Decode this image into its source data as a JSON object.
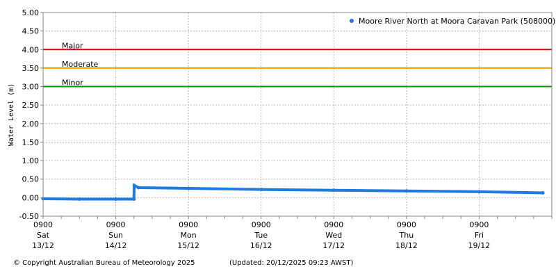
{
  "chart_data": {
    "type": "line",
    "ylabel": "Water Level (m)",
    "ylim": [
      -0.5,
      5.0
    ],
    "yticks": [
      "5.00",
      "4.50",
      "4.00",
      "3.50",
      "3.00",
      "2.50",
      "2.00",
      "1.50",
      "1.00",
      "0.50",
      "0.00",
      "-0.50"
    ],
    "xlim": [
      "2025-12-13T09:00",
      "2025-12-20T09:00"
    ],
    "xticks": [
      {
        "time": "2025-12-13T09:00",
        "l1": "0900",
        "l2": "Sat",
        "l3": "13/12"
      },
      {
        "time": "2025-12-14T09:00",
        "l1": "0900",
        "l2": "Sun",
        "l3": "14/12"
      },
      {
        "time": "2025-12-15T09:00",
        "l1": "0900",
        "l2": "Mon",
        "l3": "15/12"
      },
      {
        "time": "2025-12-16T09:00",
        "l1": "0900",
        "l2": "Tue",
        "l3": "16/12"
      },
      {
        "time": "2025-12-17T09:00",
        "l1": "0900",
        "l2": "Wed",
        "l3": "17/12"
      },
      {
        "time": "2025-12-18T09:00",
        "l1": "0900",
        "l2": "Thu",
        "l3": "18/12"
      },
      {
        "time": "2025-12-19T09:00",
        "l1": "0900",
        "l2": "Fri",
        "l3": "19/12"
      }
    ],
    "grid": true,
    "legend_position": "top-right",
    "series": [
      {
        "name": "Moore River North at Moora Caravan Park (508000)",
        "color": "#1e7be0",
        "points": [
          [
            "2025-12-13T09:00",
            -0.03
          ],
          [
            "2025-12-13T21:00",
            -0.04
          ],
          [
            "2025-12-14T09:00",
            -0.04
          ],
          [
            "2025-12-14T15:00",
            -0.04
          ],
          [
            "2025-12-14T15:05",
            0.33
          ],
          [
            "2025-12-14T16:30",
            0.27
          ],
          [
            "2025-12-15T09:00",
            0.25
          ],
          [
            "2025-12-16T09:00",
            0.22
          ],
          [
            "2025-12-17T09:00",
            0.2
          ],
          [
            "2025-12-18T09:00",
            0.18
          ],
          [
            "2025-12-19T09:00",
            0.16
          ],
          [
            "2025-12-20T06:00",
            0.13
          ]
        ]
      }
    ],
    "thresholds": [
      {
        "label": "Major",
        "value": 4.0,
        "color": "#e00000"
      },
      {
        "label": "Moderate",
        "value": 3.5,
        "color": "#ff9900"
      },
      {
        "label": "Minor",
        "value": 3.0,
        "color": "#009900"
      }
    ]
  },
  "footer": {
    "copyright": "© Copyright Australian Bureau of Meteorology 2025",
    "updated": "(Updated: 20/12/2025 09:23 AWST)"
  }
}
